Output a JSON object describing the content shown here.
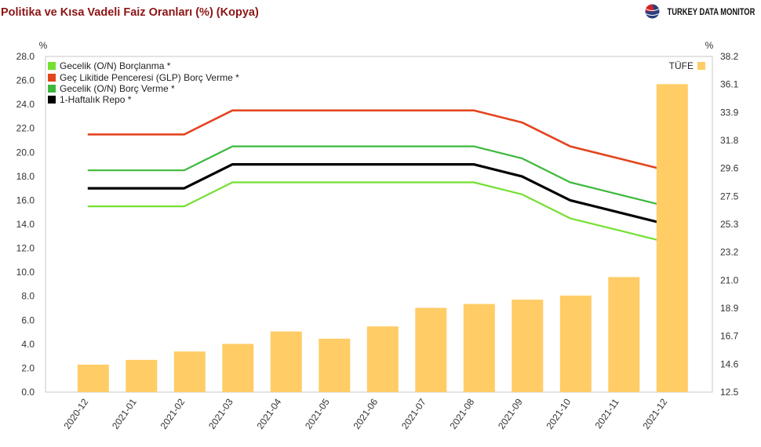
{
  "header": {
    "brand_name": "TURKEY DATA MONITOR",
    "brand_icon": "globe-icon"
  },
  "colors": {
    "title": "#8C1515",
    "brand_globe_blue": "#2B3F7E",
    "brand_globe_red": "#D2232A"
  },
  "chart_data": {
    "type": "line",
    "title": "Politika ve Kısa Vadeli Faiz Oranları (%) (Kopya)",
    "categories": [
      "2020-12",
      "2021-01",
      "2021-02",
      "2021-03",
      "2021-04",
      "2021-05",
      "2021-06",
      "2021-07",
      "2021-08",
      "2021-09",
      "2021-10",
      "2021-11",
      "2021-12"
    ],
    "y_left": {
      "label": "%",
      "range": [
        0,
        28
      ],
      "ticks": [
        "0.0",
        "2.0",
        "4.0",
        "6.0",
        "8.0",
        "10.0",
        "12.0",
        "14.0",
        "16.0",
        "18.0",
        "20.0",
        "22.0",
        "24.0",
        "26.0",
        "28.0"
      ]
    },
    "y_right": {
      "label": "%",
      "range": [
        12.5,
        38.2
      ],
      "ticks": [
        "12.5",
        "14.6",
        "16.7",
        "18.9",
        "21.0",
        "23.2",
        "25.3",
        "27.5",
        "29.6",
        "31.8",
        "33.9",
        "36.1",
        "38.2"
      ]
    },
    "grid": false,
    "legend": {
      "lines": "top-left",
      "bars": "top-right"
    },
    "series": [
      {
        "name": "Gecelik (O/N) Borçlanma *",
        "type": "line",
        "axis": "left",
        "color": "#74E030",
        "values": [
          15.5,
          15.5,
          15.5,
          17.5,
          17.5,
          17.5,
          17.5,
          17.5,
          17.5,
          16.5,
          14.5,
          13.5,
          12.5
        ]
      },
      {
        "name": "Geç Likitide Penceresi (GLP) Borç Verme *",
        "type": "line",
        "axis": "left",
        "color": "#E2451E",
        "values": [
          21.5,
          21.5,
          21.5,
          23.5,
          23.5,
          23.5,
          23.5,
          23.5,
          23.5,
          22.5,
          20.5,
          19.5,
          18.5
        ]
      },
      {
        "name": "Gecelik (O/N) Borç Verme *",
        "type": "line",
        "axis": "left",
        "color": "#3CB83C",
        "values": [
          18.5,
          18.5,
          18.5,
          20.5,
          20.5,
          20.5,
          20.5,
          20.5,
          20.5,
          19.5,
          17.5,
          16.5,
          15.5
        ]
      },
      {
        "name": "1-Haftalık Repo *",
        "type": "line",
        "axis": "left",
        "color": "#000000",
        "values": [
          17,
          17,
          17,
          19,
          19,
          19,
          19,
          19,
          19,
          18,
          16,
          15,
          14
        ]
      },
      {
        "name": "TÜFE",
        "type": "bar",
        "axis": "right",
        "color": "#FFCC66",
        "values": [
          14.6,
          14.97,
          15.61,
          16.19,
          17.14,
          16.59,
          17.53,
          18.95,
          19.25,
          19.58,
          19.89,
          21.31,
          36.08
        ]
      }
    ]
  }
}
